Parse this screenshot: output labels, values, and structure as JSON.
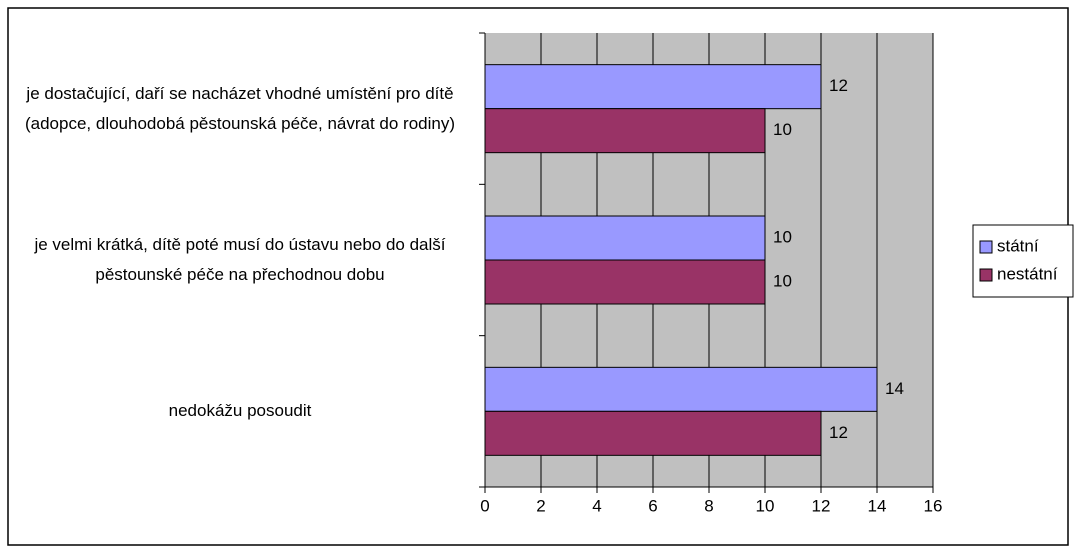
{
  "chart_data": {
    "type": "barh",
    "categories": [
      "je dostačující, daří se nacházet vhodné umístění pro dítě (adopce, dlouhodobá pěstounská péče, návrat do rodiny)",
      "je velmi krátká, dítě poté musí do ústavu nebo do další pěstounské péče na přechodnou dobu",
      "nedokážu posoudit"
    ],
    "series": [
      {
        "name": "státní",
        "color": "#9999ff",
        "values": [
          12,
          10,
          14
        ]
      },
      {
        "name": "nestátní",
        "color": "#993366",
        "values": [
          10,
          10,
          12
        ]
      }
    ],
    "xlim": [
      0,
      16
    ],
    "xticks": [
      0,
      2,
      4,
      6,
      8,
      10,
      12,
      14,
      16
    ],
    "grid": true,
    "legend": "right"
  }
}
